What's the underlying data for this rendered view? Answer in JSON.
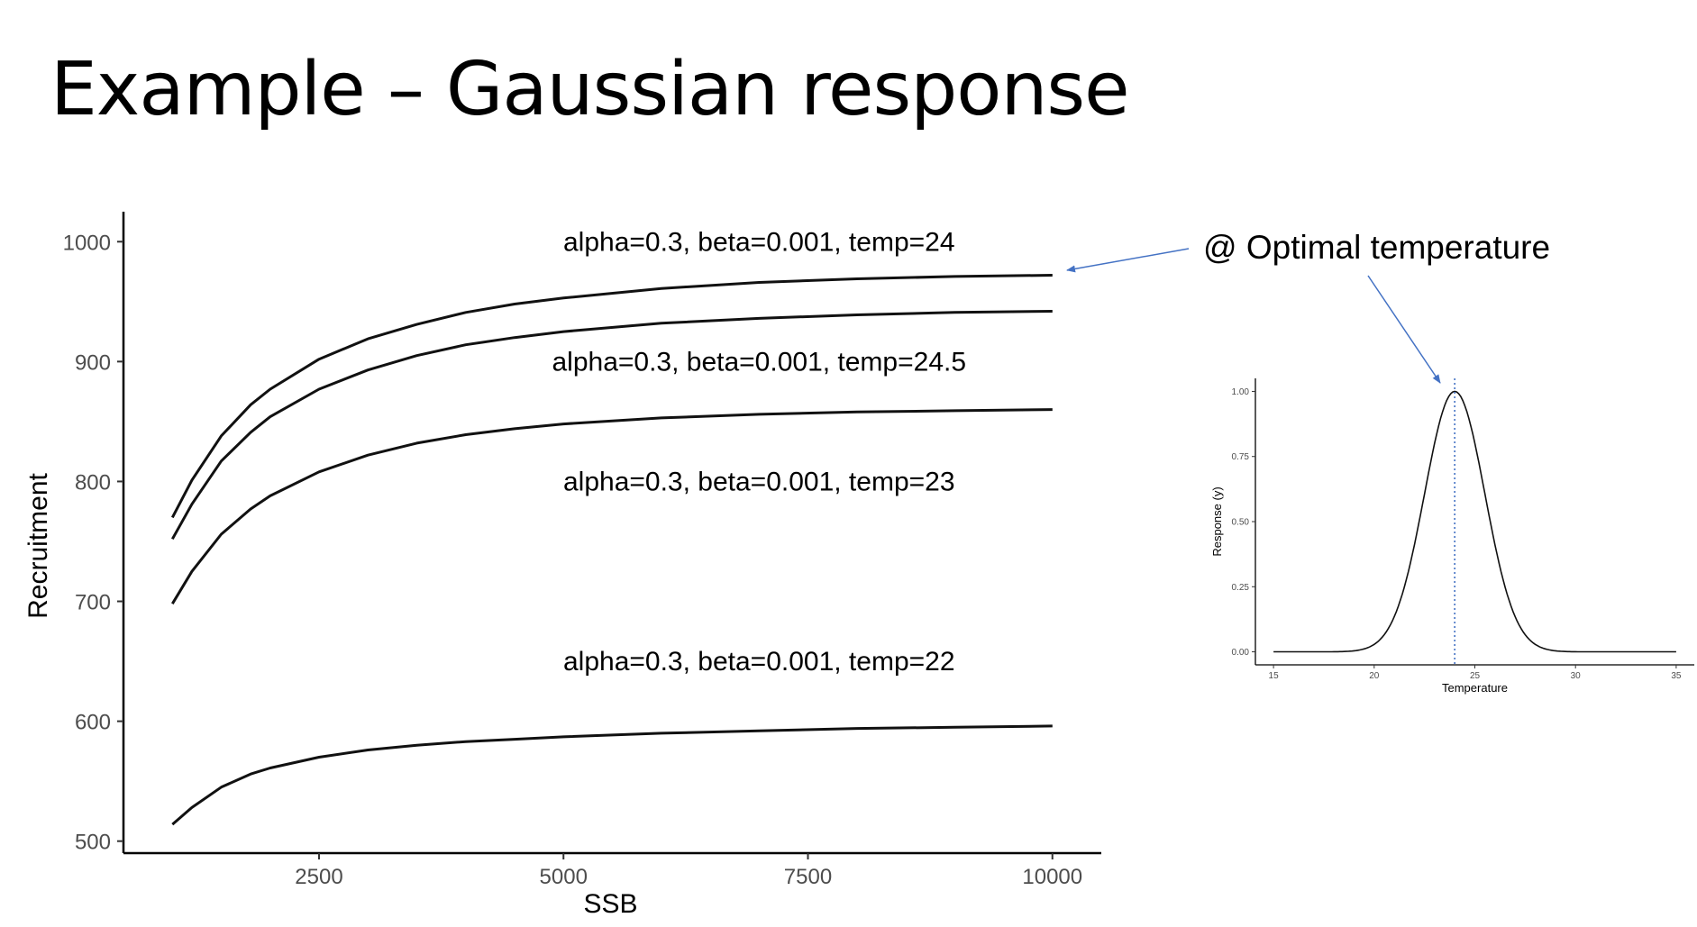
{
  "slide": {
    "title": "Example – Gaussian response",
    "callout": "@ Optimal temperature"
  },
  "chart_data": [
    {
      "type": "line",
      "title": "",
      "xlabel": "SSB",
      "ylabel": "Recruitment",
      "xlim": [
        500,
        10500
      ],
      "ylim": [
        490,
        1025
      ],
      "x_ticks": [
        2500,
        5000,
        7500,
        10000
      ],
      "y_ticks": [
        500,
        600,
        700,
        800,
        900,
        1000
      ],
      "grid": false,
      "line_color": "#111111",
      "series": [
        {
          "label": "alpha=0.3, beta=0.001, temp=24",
          "label_pos": [
            7000,
            1000
          ],
          "x": [
            1000,
            1200,
            1500,
            1800,
            2000,
            2500,
            3000,
            3500,
            4000,
            4500,
            5000,
            6000,
            7000,
            8000,
            9000,
            10000
          ],
          "y": [
            770,
            801,
            838,
            864,
            877,
            902,
            919,
            931,
            941,
            948,
            953,
            961,
            966,
            969,
            971,
            972
          ]
        },
        {
          "label": "alpha=0.3, beta=0.001, temp=24.5",
          "label_pos": [
            7000,
            900
          ],
          "x": [
            1000,
            1200,
            1500,
            1800,
            2000,
            2500,
            3000,
            3500,
            4000,
            4500,
            5000,
            6000,
            7000,
            8000,
            9000,
            10000
          ],
          "y": [
            752,
            781,
            817,
            841,
            854,
            877,
            893,
            905,
            914,
            920,
            925,
            932,
            936,
            939,
            941,
            942
          ]
        },
        {
          "label": "alpha=0.3, beta=0.001, temp=23",
          "label_pos": [
            7000,
            800
          ],
          "x": [
            1000,
            1200,
            1500,
            1800,
            2000,
            2500,
            3000,
            3500,
            4000,
            4500,
            5000,
            6000,
            7000,
            8000,
            9000,
            10000
          ],
          "y": [
            698,
            725,
            756,
            777,
            788,
            808,
            822,
            832,
            839,
            844,
            848,
            853,
            856,
            858,
            859,
            860
          ]
        },
        {
          "label": "alpha=0.3, beta=0.001, temp=22",
          "label_pos": [
            7000,
            650
          ],
          "x": [
            1000,
            1200,
            1500,
            1800,
            2000,
            2500,
            3000,
            3500,
            4000,
            4500,
            5000,
            6000,
            7000,
            8000,
            9000,
            10000
          ],
          "y": [
            514,
            528,
            545,
            556,
            561,
            570,
            576,
            580,
            583,
            585,
            587,
            590,
            592,
            594,
            595,
            596
          ]
        }
      ]
    },
    {
      "type": "line",
      "title": "",
      "xlabel": "Temperature",
      "ylabel": "Response (y)",
      "xlim": [
        14.1,
        35.9
      ],
      "ylim": [
        -0.05,
        1.05
      ],
      "x_ticks": [
        15,
        20,
        25,
        30,
        35
      ],
      "y_ticks": [
        0.0,
        0.25,
        0.5,
        0.75,
        1.0
      ],
      "y_tick_labels": [
        "0.00",
        "0.25",
        "0.50",
        "0.75",
        "1.00"
      ],
      "grid": false,
      "line_color": "#111111",
      "optimum": 24,
      "optimum_line_color": "#4472c4",
      "series": [
        {
          "x_range": [
            15,
            35
          ],
          "peak_x": 24,
          "sigma": 1.5
        }
      ]
    }
  ]
}
